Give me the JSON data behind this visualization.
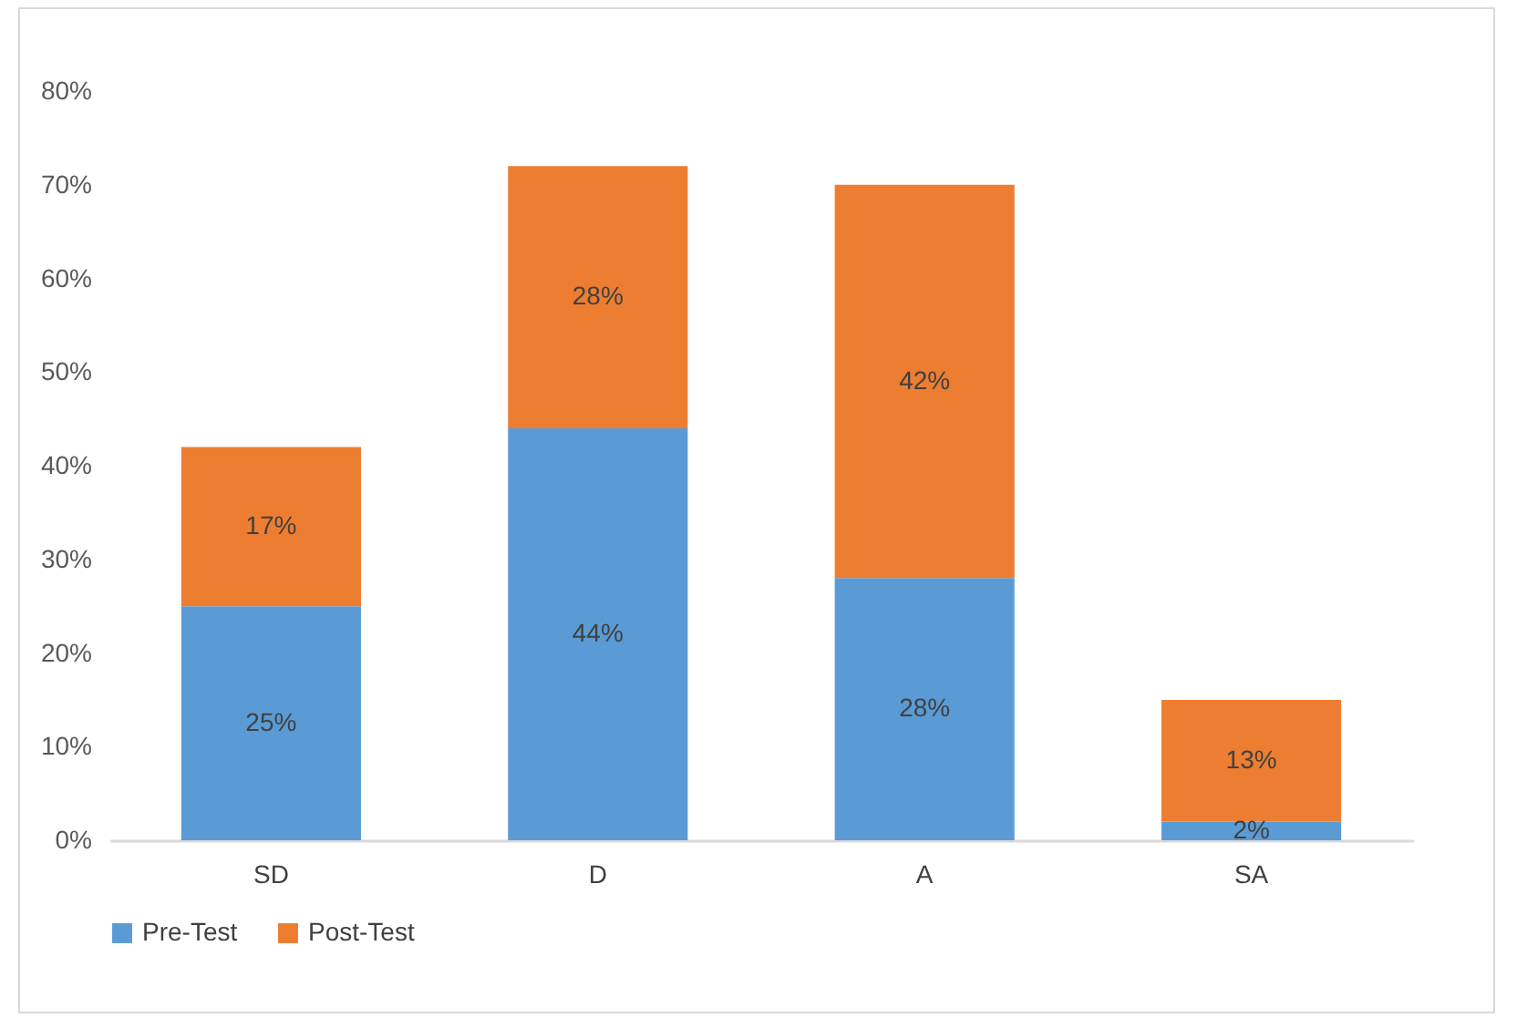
{
  "chart_data": {
    "type": "bar",
    "stacked": true,
    "categories": [
      "SD",
      "D",
      "A",
      "SA"
    ],
    "series": [
      {
        "name": "Pre-Test",
        "color": "#5b9bd5",
        "values": [
          25,
          44,
          28,
          2
        ],
        "value_labels": [
          "25%",
          "44%",
          "28%",
          "2%"
        ]
      },
      {
        "name": "Post-Test",
        "color": "#ed7d31",
        "values": [
          17,
          28,
          42,
          13
        ],
        "value_labels": [
          "17%",
          "28%",
          "42%",
          "13%"
        ]
      }
    ],
    "ylim": [
      0,
      80
    ],
    "yticks": [
      {
        "value": 0,
        "label": "0%"
      },
      {
        "value": 10,
        "label": "10%"
      },
      {
        "value": 20,
        "label": "20%"
      },
      {
        "value": 30,
        "label": "30%"
      },
      {
        "value": 40,
        "label": "40%"
      },
      {
        "value": 50,
        "label": "50%"
      },
      {
        "value": 60,
        "label": "60%"
      },
      {
        "value": 70,
        "label": "70%"
      },
      {
        "value": 80,
        "label": "80%"
      }
    ],
    "grid": false,
    "legend": "bottom"
  }
}
